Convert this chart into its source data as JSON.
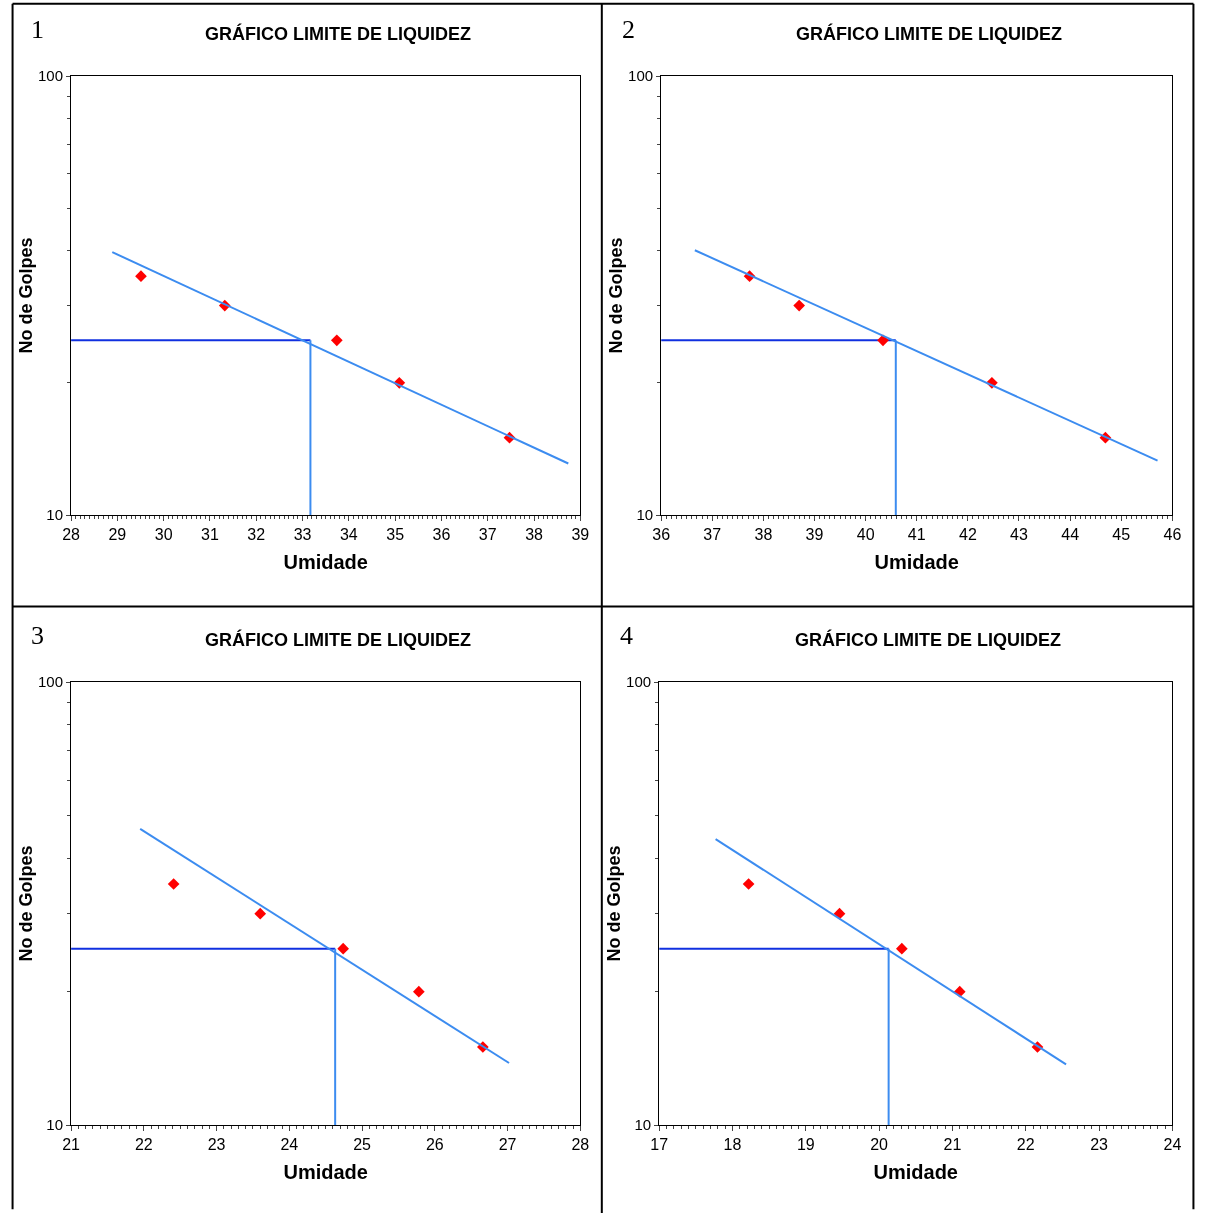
{
  "chart_data": [
    {
      "type": "scatter",
      "title": "GRÁFICO LIMITE DE LIQUIDEZ",
      "xlabel": "Umidade",
      "ylabel": "No de Golpes",
      "annotations": [
        "1"
      ],
      "log": "y",
      "marker": "diamond",
      "xlim": [
        28,
        39
      ],
      "xticks": [
        28,
        29,
        30,
        31,
        32,
        33,
        34,
        35,
        36,
        37,
        38,
        39
      ],
      "ylim": [
        10,
        100
      ],
      "yticks": [
        10,
        100
      ],
      "series": [
        {
          "color": "#ff0000",
          "x": [
            29.51,
            31.32,
            33.74,
            35.09,
            37.47
          ],
          "values": [
            35,
            30,
            25,
            20,
            15
          ]
        },
        {
          "type": "line",
          "marker": "none",
          "color": "#3c8cf0",
          "x": [
            28.89,
            38.74
          ],
          "values": [
            39.7,
            13.1
          ]
        }
      ],
      "ref_lines": [
        {
          "axis": "y",
          "value": 25,
          "color": "#1030e0"
        },
        {
          "axis": "x",
          "value": 33.17,
          "color": "#3c8cf0"
        }
      ]
    },
    {
      "type": "scatter",
      "title": "GRÁFICO LIMITE DE LIQUIDEZ",
      "xlabel": "Umidade",
      "ylabel": "No de Golpes",
      "annotations": [
        "2"
      ],
      "log": "y",
      "marker": "diamond",
      "xlim": [
        36,
        46
      ],
      "xticks": [
        36,
        37,
        38,
        39,
        40,
        41,
        42,
        43,
        44,
        45,
        46
      ],
      "ylim": [
        10,
        100
      ],
      "yticks": [
        10,
        100
      ],
      "series": [
        {
          "color": "#ff0000",
          "x": [
            37.73,
            38.7,
            40.34,
            42.47,
            44.69
          ],
          "values": [
            35,
            30,
            25,
            20,
            15
          ]
        },
        {
          "type": "line",
          "marker": "none",
          "color": "#3c8cf0",
          "x": [
            36.66,
            45.71
          ],
          "values": [
            40.1,
            13.3
          ]
        }
      ],
      "ref_lines": [
        {
          "axis": "y",
          "value": 25,
          "color": "#1030e0"
        },
        {
          "axis": "x",
          "value": 40.59,
          "color": "#3c8cf0"
        }
      ]
    },
    {
      "type": "scatter",
      "title": "GRÁFICO LIMITE DE LIQUIDEZ",
      "xlabel": "Umidade",
      "ylabel": "No de Golpes",
      "annotations": [
        "3"
      ],
      "log": "y",
      "marker": "diamond",
      "xlim": [
        21,
        28
      ],
      "xticks": [
        21,
        22,
        23,
        24,
        25,
        26,
        27,
        28
      ],
      "ylim": [
        10,
        100
      ],
      "yticks": [
        10,
        100
      ],
      "series": [
        {
          "color": "#ff0000",
          "x": [
            22.41,
            23.6,
            24.74,
            25.78,
            26.66
          ],
          "values": [
            35,
            30,
            25,
            20,
            15
          ]
        },
        {
          "type": "line",
          "marker": "none",
          "color": "#3c8cf0",
          "x": [
            21.95,
            27.02
          ],
          "values": [
            46.6,
            13.8
          ]
        }
      ],
      "ref_lines": [
        {
          "axis": "y",
          "value": 25,
          "color": "#1030e0"
        },
        {
          "axis": "x",
          "value": 24.63,
          "color": "#3c8cf0"
        }
      ]
    },
    {
      "type": "scatter",
      "title": "GRÁFICO LIMITE DE LIQUIDEZ",
      "xlabel": "Umidade",
      "ylabel": "No de Golpes",
      "annotations": [
        "4"
      ],
      "log": "y",
      "marker": "diamond",
      "xlim": [
        17,
        24
      ],
      "xticks": [
        17,
        18,
        19,
        20,
        21,
        22,
        23,
        24
      ],
      "ylim": [
        10,
        100
      ],
      "yticks": [
        10,
        100
      ],
      "series": [
        {
          "color": "#ff0000",
          "x": [
            18.22,
            19.46,
            20.31,
            21.1,
            22.16
          ],
          "values": [
            35,
            30,
            25,
            20,
            15
          ]
        },
        {
          "type": "line",
          "marker": "none",
          "color": "#3c8cf0",
          "x": [
            17.77,
            22.55
          ],
          "values": [
            44.2,
            13.7
          ]
        }
      ],
      "ref_lines": [
        {
          "axis": "y",
          "value": 25,
          "color": "#1030e0"
        },
        {
          "axis": "x",
          "value": 20.13,
          "color": "#3c8cf0"
        }
      ]
    }
  ]
}
